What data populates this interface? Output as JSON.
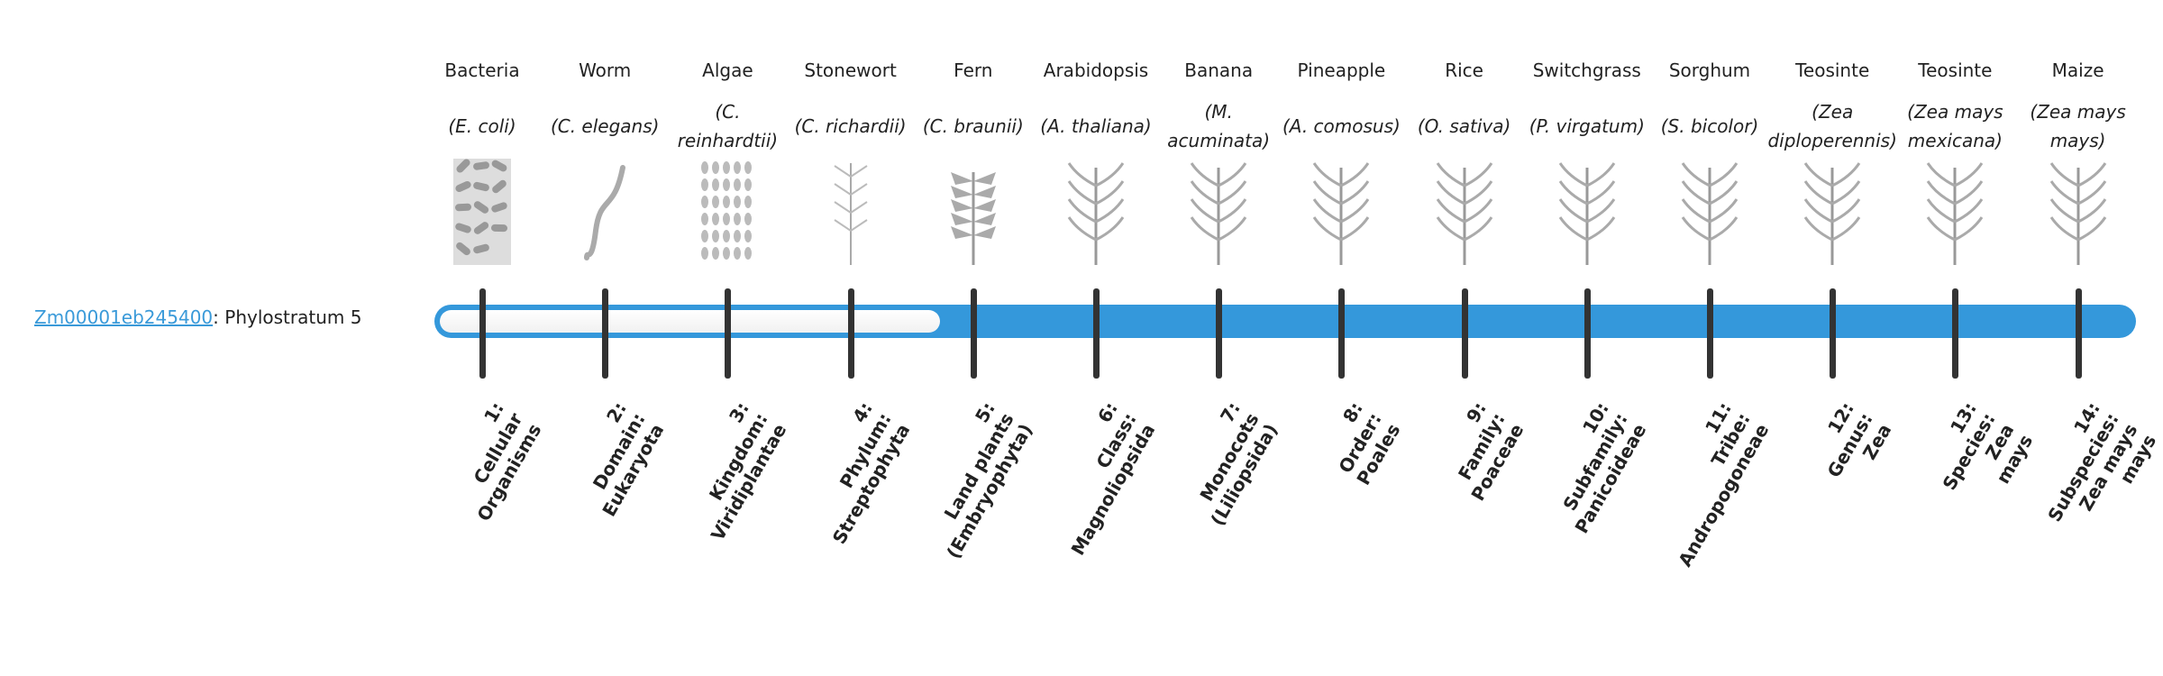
{
  "gene": {
    "id": "Zm00001eb245400",
    "suffix": ": Phylostratum 5"
  },
  "phylostratum": 5,
  "colors": {
    "bar": "#3498db",
    "tick": "#333333",
    "link": "#3a9ad9"
  },
  "columns": [
    {
      "common": "Bacteria",
      "sci": "(E. coli)",
      "icon": "bacteria-icon",
      "label": [
        "1:",
        "Cellular",
        "Organisms"
      ]
    },
    {
      "common": "Worm",
      "sci": "(C. elegans)",
      "icon": "worm-icon",
      "label": [
        "2:",
        "Domain:",
        "Eukaryota"
      ]
    },
    {
      "common": "Algae",
      "sci": "(C. reinhardtii)",
      "icon": "algae-icon",
      "label": [
        "3:",
        "Kingdom:",
        "Viridiplantae"
      ]
    },
    {
      "common": "Stonewort",
      "sci": "(C. richardii)",
      "icon": "stonewort-icon",
      "label": [
        "4:",
        "Phylum:",
        "Streptophyta"
      ]
    },
    {
      "common": "Fern",
      "sci": "(C. braunii)",
      "icon": "fern-icon",
      "label": [
        "5:",
        "Land plants",
        "(Embryophyta)"
      ]
    },
    {
      "common": "Arabidopsis",
      "sci": "(A. thaliana)",
      "icon": "arabidopsis-icon",
      "label": [
        "6:",
        "Class:",
        "Magnoliopsida"
      ]
    },
    {
      "common": "Banana",
      "sci": "(M. acuminata)",
      "icon": "banana-icon",
      "label": [
        "7:",
        "Monocots",
        "(Liliopsida)"
      ]
    },
    {
      "common": "Pineapple",
      "sci": "(A. comosus)",
      "icon": "pineapple-icon",
      "label": [
        "8:",
        "Order:",
        "Poales"
      ]
    },
    {
      "common": "Rice",
      "sci": "(O. sativa)",
      "icon": "rice-icon",
      "label": [
        "9:",
        "Family:",
        "Poaceae"
      ]
    },
    {
      "common": "Switchgrass",
      "sci": "(P. virgatum)",
      "icon": "switchgrass-icon",
      "label": [
        "10:",
        "Subfamily:",
        "Panicoideae"
      ]
    },
    {
      "common": "Sorghum",
      "sci": "(S. bicolor)",
      "icon": "sorghum-icon",
      "label": [
        "11:",
        "Tribe:",
        "Andropogoneae"
      ]
    },
    {
      "common": "Teosinte",
      "sci": "(Zea diploperennis)",
      "icon": "teosinte-icon",
      "label": [
        "12:",
        "Genus:",
        "Zea"
      ]
    },
    {
      "common": "Teosinte",
      "sci": "(Zea mays mexicana)",
      "icon": "teosinte-icon",
      "label": [
        "13:",
        "Species:",
        "Zea",
        "mays"
      ]
    },
    {
      "common": "Maize",
      "sci": "(Zea mays mays)",
      "icon": "maize-icon",
      "label": [
        "14:",
        "Subspecies:",
        "Zea mays",
        "mays"
      ]
    }
  ]
}
